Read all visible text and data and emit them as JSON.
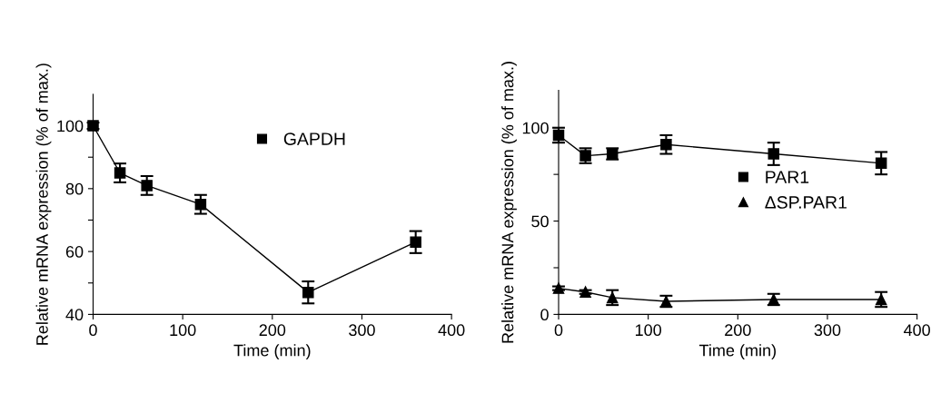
{
  "chart_data": [
    {
      "type": "line",
      "xlabel": "Time (min)",
      "ylabel": "Relative mRNA expression (% of max.)",
      "xlim": [
        0,
        400
      ],
      "xticks": [
        0,
        100,
        200,
        300,
        400
      ],
      "ylim": [
        40,
        110
      ],
      "yticks": [
        40,
        {
          "value": 50,
          "label": null
        },
        60,
        {
          "value": 70,
          "label": null
        },
        80,
        {
          "value": 90,
          "label": null
        },
        100
      ],
      "legend": "top right",
      "grid": false,
      "x": [
        0,
        30,
        60,
        120,
        240,
        360
      ],
      "series": [
        {
          "name": "GAPDH",
          "color": "#000000",
          "marker": "square",
          "values": [
            100,
            85,
            81,
            75,
            47,
            63
          ],
          "errors": [
            1,
            3,
            3,
            3,
            3.5,
            3.5
          ]
        }
      ]
    },
    {
      "type": "line",
      "xlabel": "Time (min)",
      "ylabel": "Relative mRNA expression (% of max.)",
      "xlim": [
        0,
        400
      ],
      "xticks": [
        0,
        100,
        200,
        300,
        400
      ],
      "ylim": [
        0,
        120
      ],
      "yticks": [
        0,
        {
          "value": 25,
          "label": null
        },
        50,
        {
          "value": 75,
          "label": null
        },
        100
      ],
      "legend": "right",
      "grid": false,
      "x": [
        0,
        30,
        60,
        120,
        240,
        360
      ],
      "series": [
        {
          "name": "PAR1",
          "color": "#000000",
          "marker": "square",
          "values": [
            96,
            85,
            86,
            91,
            86,
            81
          ],
          "errors": [
            4,
            4,
            3,
            5,
            6,
            6
          ]
        },
        {
          "name": "ΔSP.PAR1",
          "color": "#000000",
          "marker": "triangle",
          "values": [
            14,
            12,
            9,
            7,
            8,
            8
          ],
          "errors": [
            1,
            1,
            4,
            3,
            3,
            4
          ]
        }
      ]
    }
  ]
}
